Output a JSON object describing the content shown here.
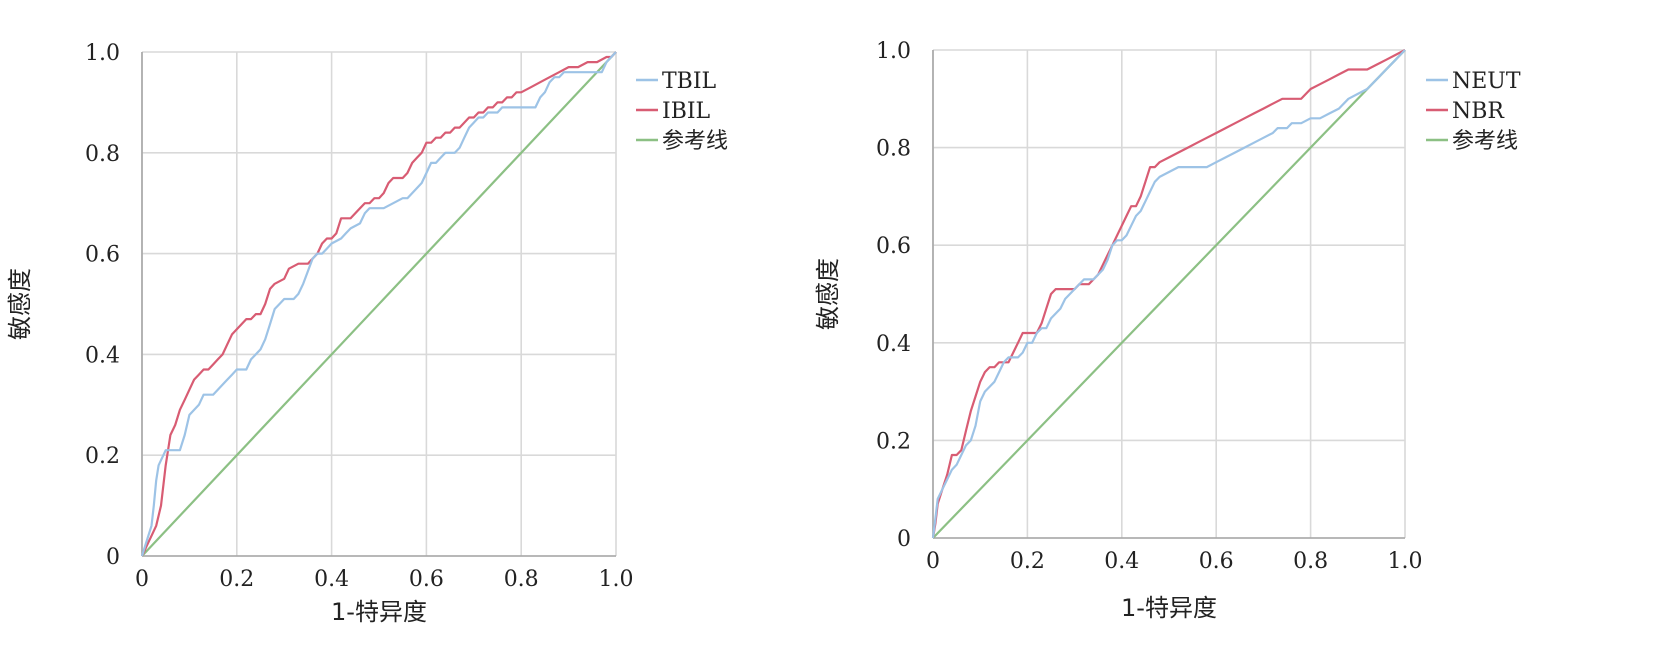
{
  "chart_data": [
    {
      "type": "line",
      "xlabel": "1-特异度",
      "ylabel": "敏感度",
      "xlim": [
        0,
        1
      ],
      "ylim": [
        0,
        1
      ],
      "xticks": [
        "0",
        "0.2",
        "0.4",
        "0.6",
        "0.8",
        "1.0"
      ],
      "yticks": [
        "0",
        "0.2",
        "0.4",
        "0.6",
        "0.8",
        "1.0"
      ],
      "grid": true,
      "legend_position": "right-top",
      "series": [
        {
          "name": "TBIL",
          "color": "#9dc3e6",
          "x": [
            0,
            0.01,
            0.02,
            0.025,
            0.03,
            0.035,
            0.04,
            0.05,
            0.06,
            0.08,
            0.09,
            0.1,
            0.12,
            0.13,
            0.15,
            0.16,
            0.18,
            0.19,
            0.2,
            0.22,
            0.23,
            0.25,
            0.26,
            0.27,
            0.28,
            0.29,
            0.3,
            0.32,
            0.33,
            0.34,
            0.36,
            0.37,
            0.38,
            0.39,
            0.4,
            0.42,
            0.43,
            0.44,
            0.46,
            0.47,
            0.48,
            0.5,
            0.51,
            0.53,
            0.55,
            0.56,
            0.57,
            0.59,
            0.6,
            0.61,
            0.62,
            0.63,
            0.64,
            0.65,
            0.66,
            0.67,
            0.68,
            0.69,
            0.7,
            0.71,
            0.72,
            0.73,
            0.75,
            0.76,
            0.78,
            0.8,
            0.81,
            0.83,
            0.84,
            0.85,
            0.86,
            0.87,
            0.88,
            0.89,
            0.9,
            0.92,
            0.95,
            0.97,
            0.98,
            0.99,
            1.0
          ],
          "y": [
            0,
            0.03,
            0.06,
            0.1,
            0.15,
            0.18,
            0.19,
            0.21,
            0.21,
            0.21,
            0.24,
            0.28,
            0.3,
            0.32,
            0.32,
            0.33,
            0.35,
            0.36,
            0.37,
            0.37,
            0.39,
            0.41,
            0.43,
            0.46,
            0.49,
            0.5,
            0.51,
            0.51,
            0.52,
            0.54,
            0.59,
            0.6,
            0.6,
            0.61,
            0.62,
            0.63,
            0.64,
            0.65,
            0.66,
            0.68,
            0.69,
            0.69,
            0.69,
            0.7,
            0.71,
            0.71,
            0.72,
            0.74,
            0.76,
            0.78,
            0.78,
            0.79,
            0.8,
            0.8,
            0.8,
            0.81,
            0.83,
            0.85,
            0.86,
            0.87,
            0.87,
            0.88,
            0.88,
            0.89,
            0.89,
            0.89,
            0.89,
            0.89,
            0.91,
            0.92,
            0.94,
            0.95,
            0.95,
            0.96,
            0.96,
            0.96,
            0.96,
            0.96,
            0.98,
            0.99,
            1.0
          ]
        },
        {
          "name": "IBIL",
          "color": "#d85c73",
          "x": [
            0,
            0.005,
            0.01,
            0.02,
            0.03,
            0.04,
            0.05,
            0.06,
            0.07,
            0.08,
            0.09,
            0.1,
            0.11,
            0.12,
            0.13,
            0.14,
            0.15,
            0.16,
            0.17,
            0.18,
            0.19,
            0.2,
            0.21,
            0.22,
            0.23,
            0.24,
            0.25,
            0.26,
            0.27,
            0.28,
            0.3,
            0.31,
            0.33,
            0.35,
            0.36,
            0.37,
            0.38,
            0.39,
            0.4,
            0.41,
            0.42,
            0.43,
            0.44,
            0.45,
            0.46,
            0.47,
            0.48,
            0.49,
            0.5,
            0.51,
            0.52,
            0.53,
            0.54,
            0.55,
            0.56,
            0.57,
            0.58,
            0.59,
            0.6,
            0.61,
            0.62,
            0.63,
            0.64,
            0.65,
            0.66,
            0.67,
            0.68,
            0.69,
            0.7,
            0.71,
            0.72,
            0.73,
            0.74,
            0.75,
            0.76,
            0.77,
            0.78,
            0.79,
            0.8,
            0.82,
            0.84,
            0.86,
            0.88,
            0.9,
            0.92,
            0.94,
            0.96,
            0.98,
            0.99,
            1.0
          ],
          "y": [
            0,
            0.01,
            0.02,
            0.04,
            0.06,
            0.1,
            0.18,
            0.24,
            0.26,
            0.29,
            0.31,
            0.33,
            0.35,
            0.36,
            0.37,
            0.37,
            0.38,
            0.39,
            0.4,
            0.42,
            0.44,
            0.45,
            0.46,
            0.47,
            0.47,
            0.48,
            0.48,
            0.5,
            0.53,
            0.54,
            0.55,
            0.57,
            0.58,
            0.58,
            0.59,
            0.6,
            0.62,
            0.63,
            0.63,
            0.64,
            0.67,
            0.67,
            0.67,
            0.68,
            0.69,
            0.7,
            0.7,
            0.71,
            0.71,
            0.72,
            0.74,
            0.75,
            0.75,
            0.75,
            0.76,
            0.78,
            0.79,
            0.8,
            0.82,
            0.82,
            0.83,
            0.83,
            0.84,
            0.84,
            0.85,
            0.85,
            0.86,
            0.87,
            0.87,
            0.88,
            0.88,
            0.89,
            0.89,
            0.9,
            0.9,
            0.91,
            0.91,
            0.92,
            0.92,
            0.93,
            0.94,
            0.95,
            0.96,
            0.97,
            0.97,
            0.98,
            0.98,
            0.99,
            0.99,
            1.0
          ]
        },
        {
          "name": "参考线",
          "color": "#8cc084",
          "x": [
            0,
            1
          ],
          "y": [
            0,
            1
          ]
        }
      ]
    },
    {
      "type": "line",
      "xlabel": "1-特异度",
      "ylabel": "敏感度",
      "xlim": [
        0,
        1
      ],
      "ylim": [
        0,
        1
      ],
      "xticks": [
        "0",
        "0.2",
        "0.4",
        "0.6",
        "0.8",
        "1.0"
      ],
      "yticks": [
        "0",
        "0.2",
        "0.4",
        "0.6",
        "0.8",
        "1.0"
      ],
      "grid": true,
      "legend_position": "right-top",
      "series": [
        {
          "name": "NEUT",
          "color": "#9dc3e6",
          "x": [
            0,
            0.005,
            0.01,
            0.02,
            0.03,
            0.04,
            0.05,
            0.06,
            0.07,
            0.08,
            0.09,
            0.1,
            0.11,
            0.12,
            0.13,
            0.14,
            0.15,
            0.16,
            0.17,
            0.18,
            0.19,
            0.2,
            0.21,
            0.22,
            0.23,
            0.24,
            0.25,
            0.26,
            0.27,
            0.28,
            0.29,
            0.3,
            0.31,
            0.32,
            0.33,
            0.34,
            0.35,
            0.36,
            0.37,
            0.38,
            0.39,
            0.4,
            0.41,
            0.42,
            0.43,
            0.44,
            0.45,
            0.46,
            0.47,
            0.48,
            0.5,
            0.52,
            0.54,
            0.56,
            0.58,
            0.6,
            0.62,
            0.64,
            0.66,
            0.68,
            0.7,
            0.72,
            0.73,
            0.74,
            0.75,
            0.76,
            0.78,
            0.8,
            0.82,
            0.84,
            0.86,
            0.88,
            0.9,
            0.92,
            0.94,
            0.96,
            0.98,
            1.0
          ],
          "y": [
            0,
            0.04,
            0.08,
            0.1,
            0.12,
            0.14,
            0.15,
            0.17,
            0.19,
            0.2,
            0.23,
            0.28,
            0.3,
            0.31,
            0.32,
            0.34,
            0.36,
            0.37,
            0.37,
            0.37,
            0.38,
            0.4,
            0.4,
            0.42,
            0.43,
            0.43,
            0.45,
            0.46,
            0.47,
            0.49,
            0.5,
            0.51,
            0.52,
            0.53,
            0.53,
            0.53,
            0.54,
            0.55,
            0.57,
            0.6,
            0.61,
            0.61,
            0.62,
            0.64,
            0.66,
            0.67,
            0.69,
            0.71,
            0.73,
            0.74,
            0.75,
            0.76,
            0.76,
            0.76,
            0.76,
            0.77,
            0.78,
            0.79,
            0.8,
            0.81,
            0.82,
            0.83,
            0.84,
            0.84,
            0.84,
            0.85,
            0.85,
            0.86,
            0.86,
            0.87,
            0.88,
            0.9,
            0.91,
            0.92,
            0.94,
            0.96,
            0.98,
            1.0
          ]
        },
        {
          "name": "NBR",
          "color": "#d85c73",
          "x": [
            0,
            0.005,
            0.01,
            0.02,
            0.03,
            0.04,
            0.05,
            0.06,
            0.07,
            0.08,
            0.09,
            0.1,
            0.11,
            0.12,
            0.13,
            0.14,
            0.15,
            0.16,
            0.17,
            0.18,
            0.19,
            0.2,
            0.21,
            0.22,
            0.23,
            0.24,
            0.25,
            0.26,
            0.27,
            0.28,
            0.29,
            0.3,
            0.31,
            0.32,
            0.33,
            0.34,
            0.35,
            0.36,
            0.37,
            0.38,
            0.39,
            0.4,
            0.41,
            0.42,
            0.43,
            0.44,
            0.45,
            0.46,
            0.47,
            0.48,
            0.5,
            0.52,
            0.54,
            0.56,
            0.58,
            0.6,
            0.62,
            0.64,
            0.66,
            0.68,
            0.7,
            0.72,
            0.74,
            0.76,
            0.78,
            0.8,
            0.82,
            0.84,
            0.86,
            0.88,
            0.9,
            0.92,
            0.94,
            0.96,
            0.98,
            1.0
          ],
          "y": [
            0,
            0.03,
            0.07,
            0.1,
            0.13,
            0.17,
            0.17,
            0.18,
            0.22,
            0.26,
            0.29,
            0.32,
            0.34,
            0.35,
            0.35,
            0.36,
            0.36,
            0.36,
            0.38,
            0.4,
            0.42,
            0.42,
            0.42,
            0.42,
            0.44,
            0.47,
            0.5,
            0.51,
            0.51,
            0.51,
            0.51,
            0.51,
            0.52,
            0.52,
            0.52,
            0.53,
            0.54,
            0.56,
            0.58,
            0.6,
            0.62,
            0.64,
            0.66,
            0.68,
            0.68,
            0.7,
            0.73,
            0.76,
            0.76,
            0.77,
            0.78,
            0.79,
            0.8,
            0.81,
            0.82,
            0.83,
            0.84,
            0.85,
            0.86,
            0.87,
            0.88,
            0.89,
            0.9,
            0.9,
            0.9,
            0.92,
            0.93,
            0.94,
            0.95,
            0.96,
            0.96,
            0.96,
            0.97,
            0.98,
            0.99,
            1.0
          ]
        },
        {
          "name": "参考线",
          "color": "#8cc084",
          "x": [
            0,
            1
          ],
          "y": [
            0,
            1
          ]
        }
      ]
    }
  ]
}
